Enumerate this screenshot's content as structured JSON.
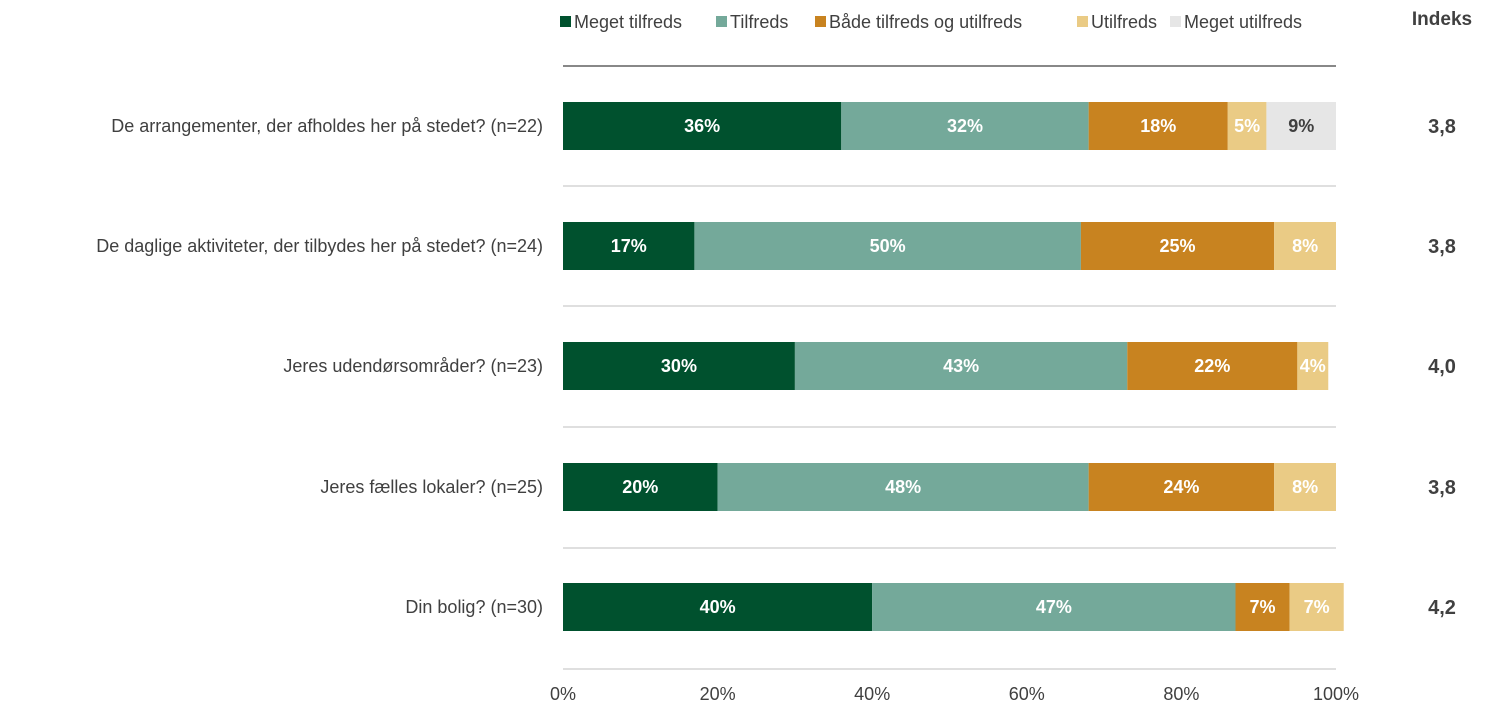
{
  "chart_data": {
    "type": "bar",
    "orientation": "horizontal",
    "stacked": true,
    "percent": true,
    "categories": [
      "De arrangementer, der afholdes her på stedet? (n=22)",
      "De daglige aktiviteter, der tilbydes her på stedet? (n=24)",
      "Jeres udendørsområder? (n=23)",
      "Jeres fælles lokaler? (n=25)",
      "Din bolig? (n=30)"
    ],
    "series": [
      {
        "name": "Meget tilfreds",
        "color": "#00512E",
        "label_color": "#ffffff",
        "values": [
          36,
          17,
          30,
          20,
          40
        ],
        "labels": [
          "36%",
          "17%",
          "30%",
          "20%",
          "40%"
        ]
      },
      {
        "name": "Tilfreds",
        "color": "#74A99A",
        "label_color": "#ffffff",
        "values": [
          32,
          50,
          43,
          48,
          47
        ],
        "labels": [
          "32%",
          "50%",
          "43%",
          "48%",
          "47%"
        ]
      },
      {
        "name": "Både tilfreds og utilfreds",
        "color": "#C88320",
        "label_color": "#ffffff",
        "values": [
          18,
          25,
          22,
          24,
          7
        ],
        "labels": [
          "18%",
          "25%",
          "22%",
          "24%",
          "7%"
        ]
      },
      {
        "name": "Utilfreds",
        "color": "#EACB85",
        "label_color": "#ffffff",
        "values": [
          5,
          8,
          4,
          8,
          7
        ],
        "labels": [
          "5%",
          "8%",
          "4%",
          "8%",
          "7%"
        ]
      },
      {
        "name": "Meget utilfreds",
        "color": "#E6E6E6",
        "label_color": "#404040",
        "values": [
          9,
          0,
          0,
          0,
          0
        ],
        "labels": [
          "9%",
          "",
          "",
          "",
          ""
        ]
      }
    ],
    "index_header": "Indeks",
    "index_values": [
      "3,8",
      "3,8",
      "4,0",
      "3,8",
      "4,2"
    ],
    "x_ticks": [
      "0%",
      "20%",
      "40%",
      "60%",
      "80%",
      "100%"
    ],
    "xlim": [
      0,
      100
    ],
    "legend_position": "top",
    "grid": false
  }
}
